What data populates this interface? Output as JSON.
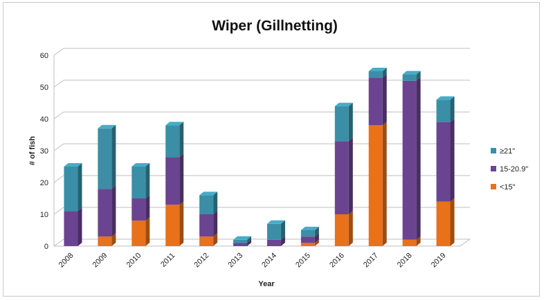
{
  "chart_data": {
    "type": "bar",
    "stacked": true,
    "three_d": true,
    "title": "Wiper (Gillnetting)",
    "xlabel": "Year",
    "ylabel": "# of fish",
    "ylim": [
      0,
      60
    ],
    "yticks": [
      0,
      10,
      20,
      30,
      40,
      50,
      60
    ],
    "grid": true,
    "legend_position": "right",
    "categories": [
      "2008",
      "2009",
      "2010",
      "2011",
      "2012",
      "2013",
      "2014",
      "2015",
      "2016",
      "2017",
      "2018",
      "2019"
    ],
    "series": [
      {
        "name": "<15\"",
        "color": "#e8711a",
        "values": [
          0,
          3,
          8,
          13,
          3,
          0,
          0,
          1,
          10,
          38,
          2,
          14
        ]
      },
      {
        "name": "15-20.9\"",
        "color": "#6a4490",
        "values": [
          11,
          15,
          7,
          15,
          7,
          1,
          2,
          2,
          23,
          15,
          50,
          25
        ]
      },
      {
        "name": "≥21\"",
        "color": "#3a8fa6",
        "values": [
          14,
          19,
          10,
          10,
          6,
          1,
          5,
          2,
          11,
          2,
          2,
          7
        ]
      }
    ],
    "legend_order": [
      "≥21\"",
      "15-20.9\"",
      "<15\""
    ]
  }
}
